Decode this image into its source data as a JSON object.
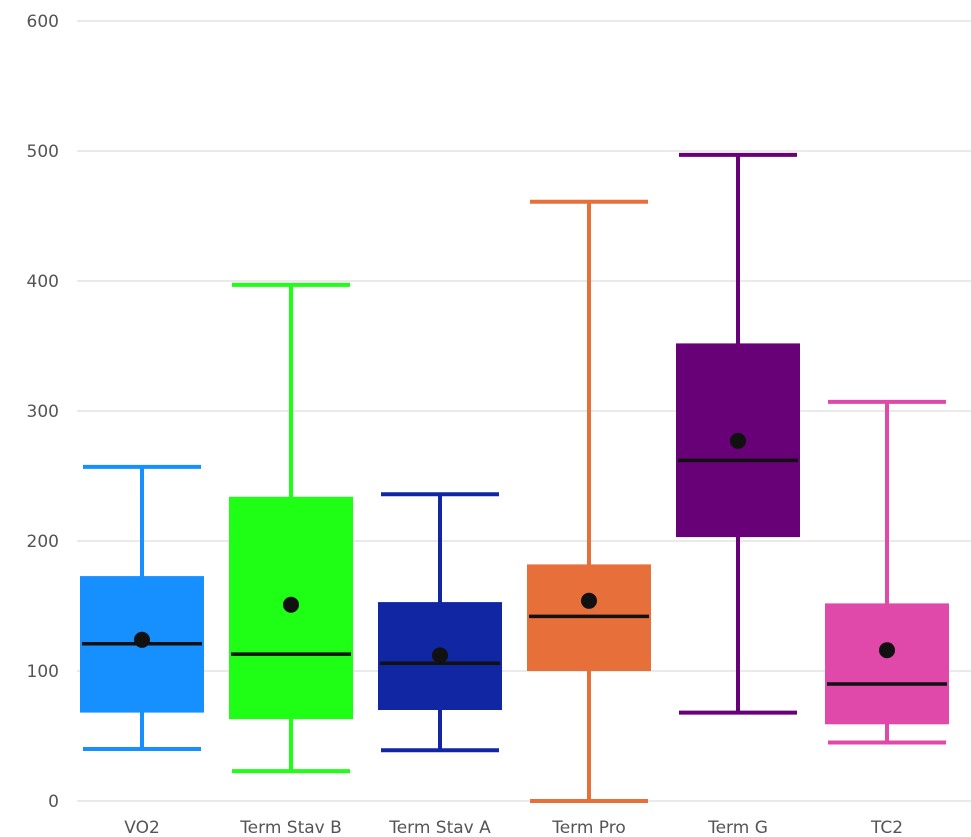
{
  "chart_data": {
    "type": "boxplot",
    "title": "",
    "xlabel": "",
    "ylabel": "",
    "ylim": [
      0,
      600
    ],
    "yticks": [
      0,
      100,
      200,
      300,
      400,
      500,
      600
    ],
    "grid": true,
    "categories": [
      "VO2",
      "Term Stav B",
      "Term Stav A",
      "Term Pro",
      "Term G",
      "TC2"
    ],
    "series": [
      {
        "category": "VO2",
        "color": "#1690ff",
        "min": 40,
        "q1": 68,
        "median": 121,
        "q3": 173,
        "max": 257,
        "mean": 124
      },
      {
        "category": "Term Stav B",
        "color": "#1fff16",
        "min": 23,
        "q1": 63,
        "median": 113,
        "q3": 234,
        "max": 397,
        "mean": 151
      },
      {
        "category": "Term Stav A",
        "color": "#1126a3",
        "min": 39,
        "q1": 70,
        "median": 106,
        "q3": 153,
        "max": 236,
        "mean": 112
      },
      {
        "category": "Term Pro",
        "color": "#e76f39",
        "min": 0,
        "q1": 100,
        "median": 142,
        "q3": 182,
        "max": 461,
        "mean": 154
      },
      {
        "category": "Term G",
        "color": "#680077",
        "min": 68,
        "q1": 203,
        "median": 262,
        "q3": 352,
        "max": 497,
        "mean": 277
      },
      {
        "category": "TC2",
        "color": "#e048a9",
        "min": 45,
        "q1": 59,
        "median": 90,
        "q3": 152,
        "max": 307,
        "mean": 116
      }
    ]
  }
}
